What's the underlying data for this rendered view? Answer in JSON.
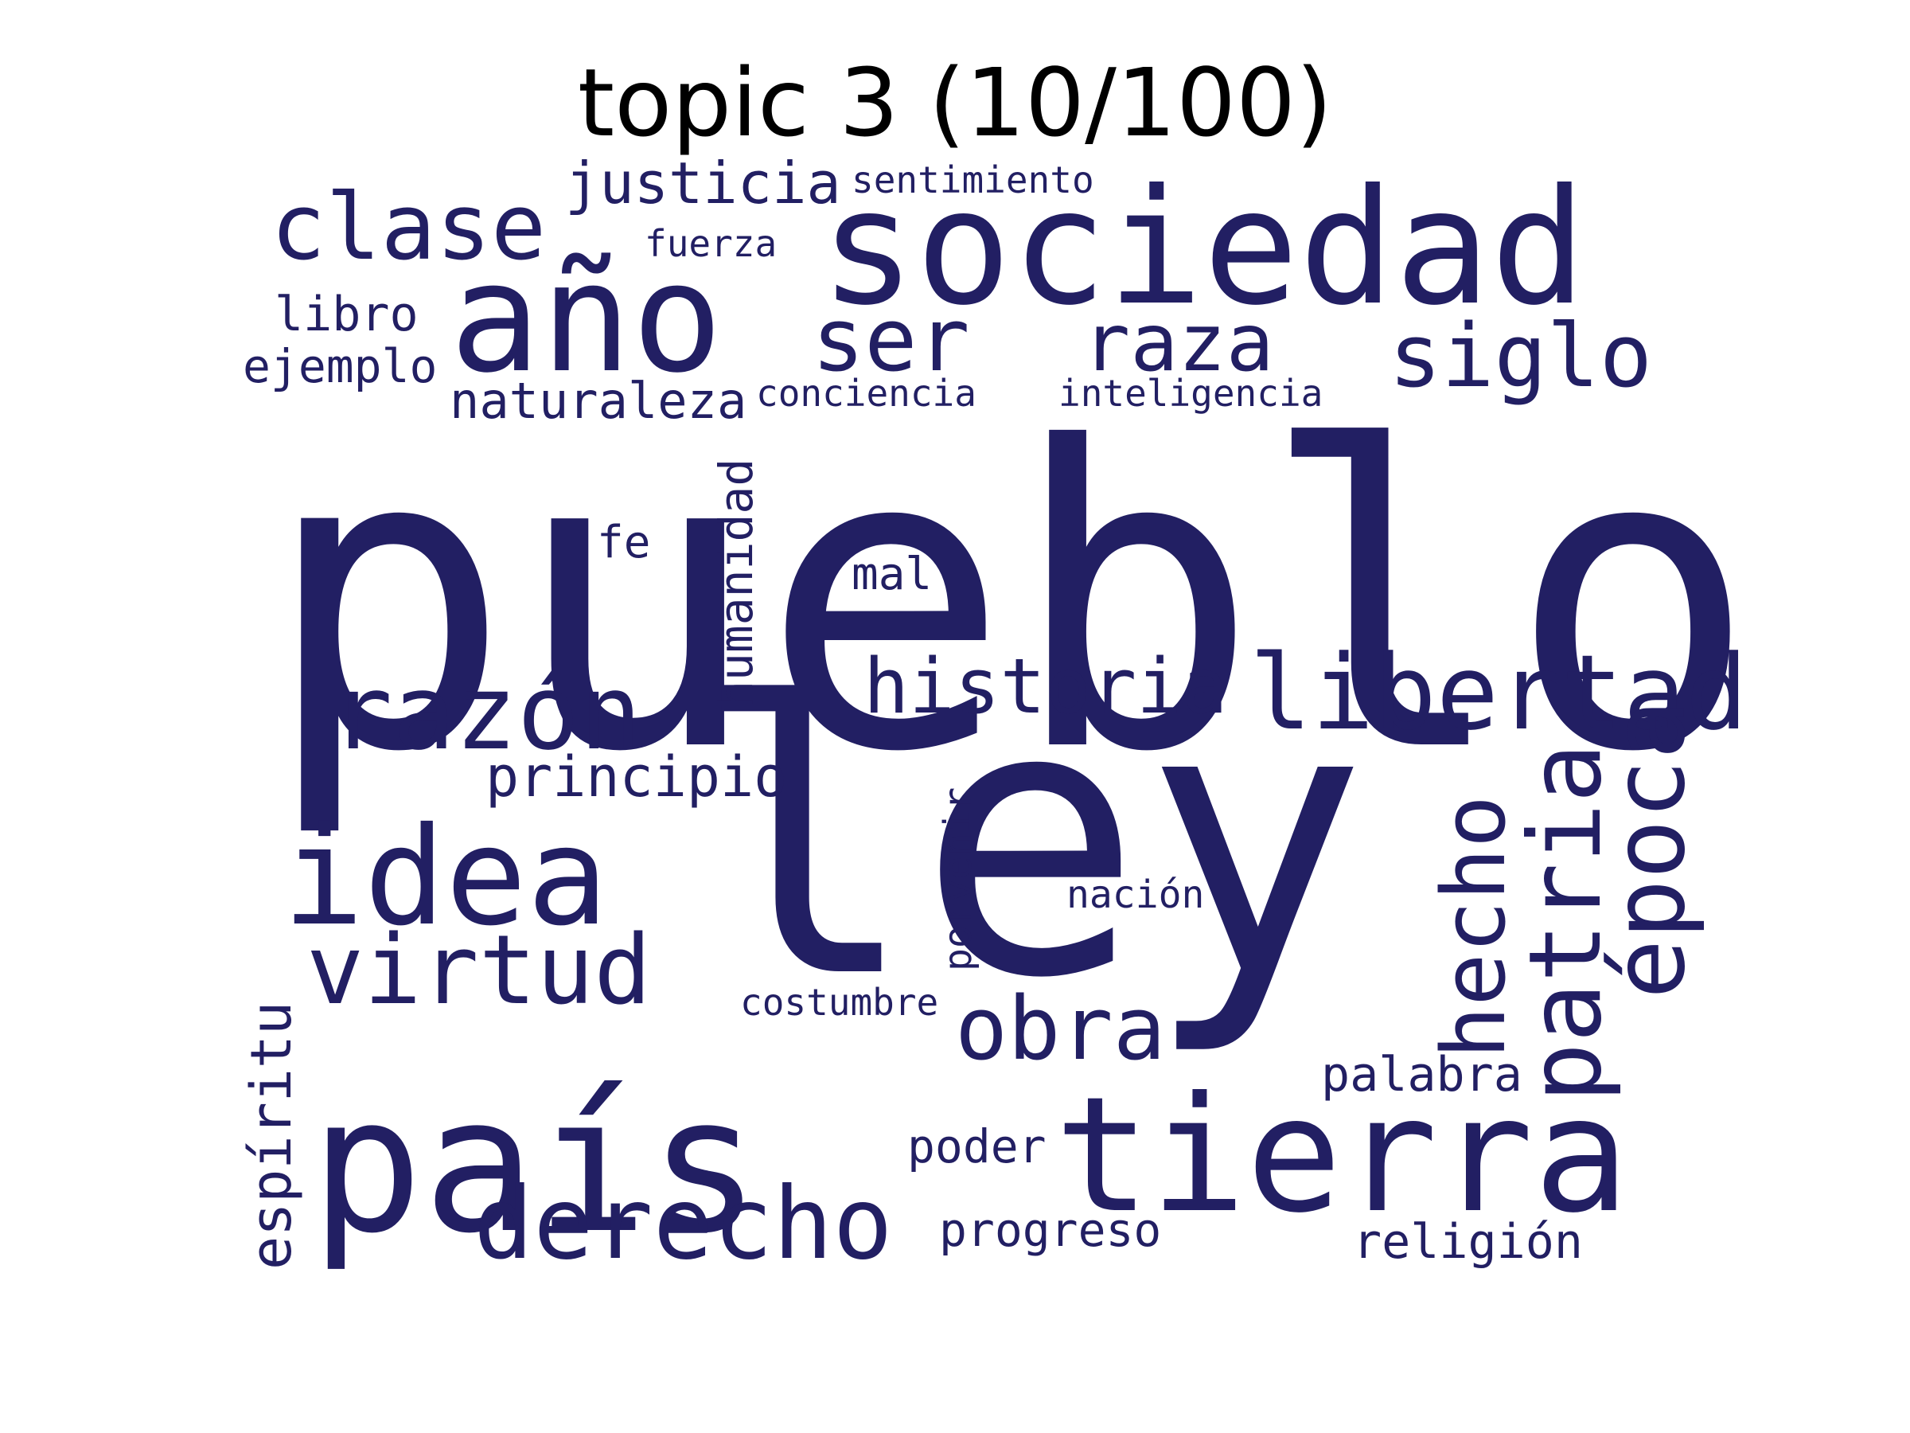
{
  "title": "topic 3 (10/100)",
  "word_color": "#221f63",
  "background_color": "#ffffff",
  "words": [
    {
      "text": "pueblo",
      "orientation": "horizontal"
    },
    {
      "text": "ley",
      "orientation": "horizontal"
    },
    {
      "text": "país",
      "orientation": "horizontal"
    },
    {
      "text": "sociedad",
      "orientation": "horizontal"
    },
    {
      "text": "año",
      "orientation": "horizontal"
    },
    {
      "text": "tierra",
      "orientation": "horizontal"
    },
    {
      "text": "idea",
      "orientation": "horizontal"
    },
    {
      "text": "libertad",
      "orientation": "horizontal"
    },
    {
      "text": "razón",
      "orientation": "horizontal"
    },
    {
      "text": "derecho",
      "orientation": "horizontal"
    },
    {
      "text": "virtud",
      "orientation": "horizontal"
    },
    {
      "text": "obra",
      "orientation": "horizontal"
    },
    {
      "text": "historia",
      "orientation": "horizontal"
    },
    {
      "text": "siglo",
      "orientation": "horizontal"
    },
    {
      "text": "clase",
      "orientation": "horizontal"
    },
    {
      "text": "ser",
      "orientation": "horizontal"
    },
    {
      "text": "raza",
      "orientation": "horizontal"
    },
    {
      "text": "hecho",
      "orientation": "vertical"
    },
    {
      "text": "patria",
      "orientation": "vertical"
    },
    {
      "text": "época",
      "orientation": "vertical"
    },
    {
      "text": "justicia",
      "orientation": "horizontal"
    },
    {
      "text": "principio",
      "orientation": "horizontal"
    },
    {
      "text": "naturaleza",
      "orientation": "horizontal"
    },
    {
      "text": "espíritu",
      "orientation": "vertical"
    },
    {
      "text": "humanidad",
      "orientation": "vertical"
    },
    {
      "text": "libro",
      "orientation": "horizontal"
    },
    {
      "text": "ejemplo",
      "orientation": "horizontal"
    },
    {
      "text": "palabra",
      "orientation": "horizontal"
    },
    {
      "text": "religión",
      "orientation": "horizontal"
    },
    {
      "text": "progreso",
      "orientation": "horizontal"
    },
    {
      "text": "poder",
      "orientation": "horizontal"
    },
    {
      "text": "mal",
      "orientation": "horizontal"
    },
    {
      "text": "fe",
      "orientation": "horizontal"
    },
    {
      "text": "porvenir",
      "orientation": "vertical"
    },
    {
      "text": "nación",
      "orientation": "horizontal"
    },
    {
      "text": "costumbre",
      "orientation": "horizontal"
    },
    {
      "text": "conciencia",
      "orientation": "horizontal"
    },
    {
      "text": "inteligencia",
      "orientation": "horizontal"
    },
    {
      "text": "sentimiento",
      "orientation": "horizontal"
    },
    {
      "text": "fuerza",
      "orientation": "horizontal"
    }
  ]
}
